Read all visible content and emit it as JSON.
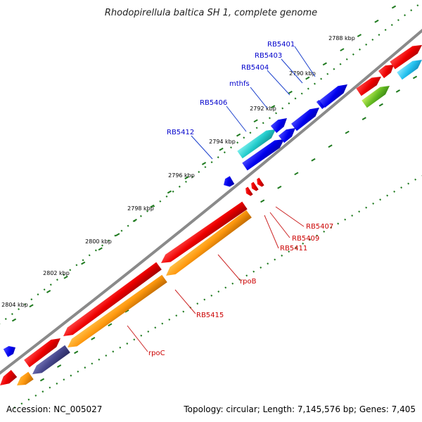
{
  "title": "Rhodopirellula baltica SH 1, complete genome",
  "colors": {
    "backbone": "#8a8a8a",
    "tick": "#1e7a1e",
    "label_forward": "#0000cc",
    "label_reverse": "#cc0000",
    "leader_forward": "#1a3fcc",
    "leader_reverse": "#cc2222"
  },
  "scale_labels": [
    "2788 kbp",
    "2790 kbp",
    "2792 kbp",
    "2794 kbp",
    "2796 kbp",
    "2798 kbp",
    "2800 kbp",
    "2802 kbp",
    "2804 kbp"
  ],
  "feature_colors": [
    "red",
    "orange",
    "blue",
    "cyan",
    "dark-blue",
    "green"
  ],
  "gene_labels": [
    "RB5401",
    "RB5403",
    "RB5404",
    "mthfs",
    "RB5406",
    "RB5412",
    "RB5407",
    "RB5409",
    "RB5411",
    "rpoB",
    "RB5415",
    "rpoC"
  ],
  "footer": {
    "accession": "Accession: NC_005027",
    "summary": "Topology: circular; Length: 7,145,576 bp; Genes: 7,405"
  }
}
